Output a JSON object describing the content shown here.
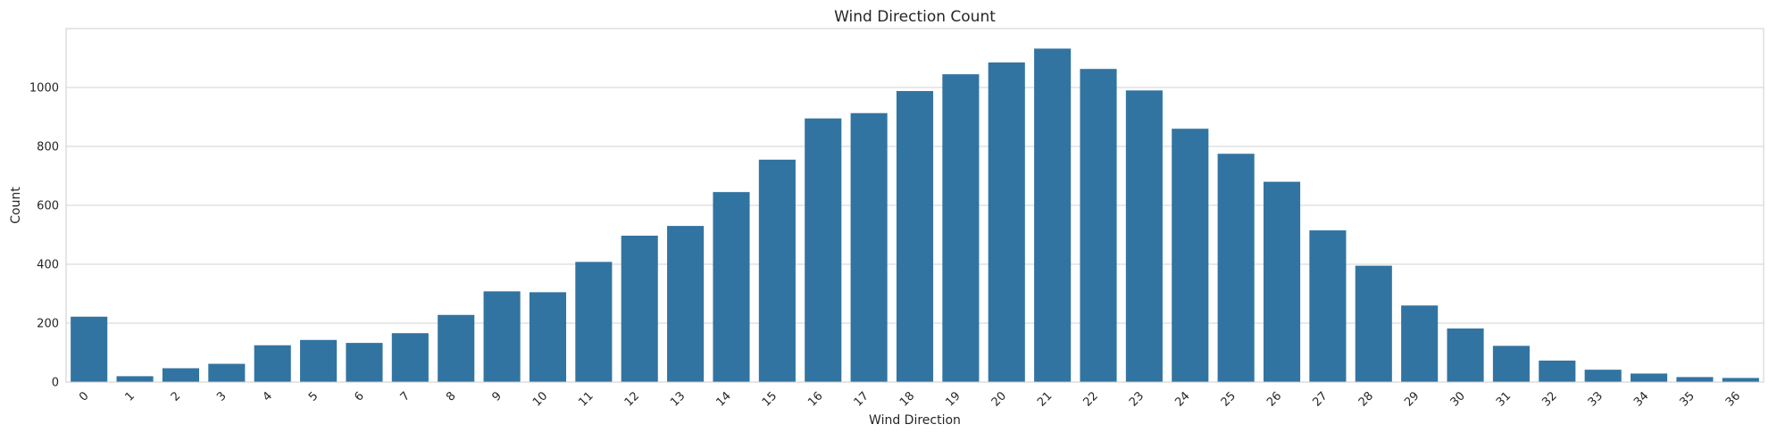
{
  "chart_data": {
    "type": "bar",
    "title": "Wind Direction Count",
    "xlabel": "Wind Direction",
    "ylabel": "Count",
    "categories": [
      "0",
      "1",
      "2",
      "3",
      "4",
      "5",
      "6",
      "7",
      "8",
      "9",
      "10",
      "11",
      "12",
      "13",
      "14",
      "15",
      "16",
      "17",
      "18",
      "19",
      "20",
      "21",
      "22",
      "23",
      "24",
      "25",
      "26",
      "27",
      "28",
      "29",
      "30",
      "31",
      "32",
      "33",
      "34",
      "35",
      "36"
    ],
    "values": [
      222,
      20,
      47,
      62,
      125,
      143,
      133,
      166,
      228,
      308,
      305,
      408,
      497,
      530,
      645,
      755,
      895,
      913,
      988,
      1045,
      1085,
      1132,
      1063,
      990,
      860,
      775,
      680,
      515,
      395,
      260,
      182,
      123,
      73,
      42,
      29,
      17,
      14
    ],
    "ylim": [
      0,
      1200
    ],
    "yticks": [
      0,
      200,
      400,
      600,
      800,
      1000
    ],
    "grid": true,
    "bar_color": "#3274a1",
    "grid_color": "#d3d3d3",
    "axes_edge_color": "#cccccc"
  }
}
